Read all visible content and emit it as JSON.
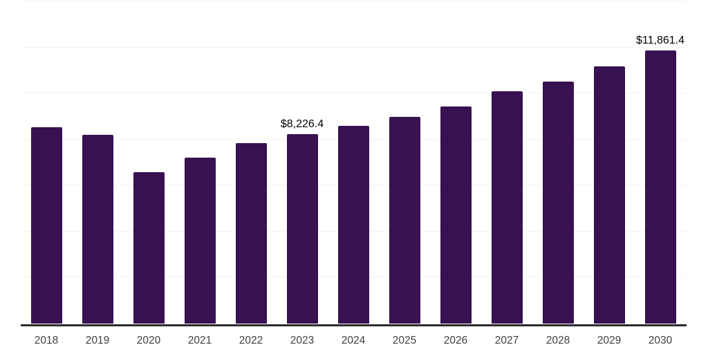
{
  "chart_data": {
    "type": "bar",
    "title": "",
    "xlabel": "",
    "ylabel": "",
    "categories": [
      "2018",
      "2019",
      "2020",
      "2021",
      "2022",
      "2023",
      "2024",
      "2025",
      "2026",
      "2027",
      "2028",
      "2029",
      "2030"
    ],
    "values": [
      8530,
      8200,
      6580,
      7210,
      7850,
      8226.4,
      8590,
      8980,
      9430,
      10090,
      10510,
      11170,
      11861.4
    ],
    "data_labels": [
      null,
      null,
      null,
      null,
      null,
      "$8,226.4",
      null,
      null,
      null,
      null,
      null,
      null,
      "$11,861.4"
    ],
    "ylim": [
      0,
      14000
    ],
    "y_gridline_step": 2000,
    "grid": true,
    "legend": false,
    "y_axis_labels_visible": false,
    "bar_color": "#371150",
    "axis_line_color": "#2b2b2b",
    "gridline_color": "#f2f2f2",
    "tick_label_color": "#3f3f3f",
    "data_label_color": "#000000"
  }
}
